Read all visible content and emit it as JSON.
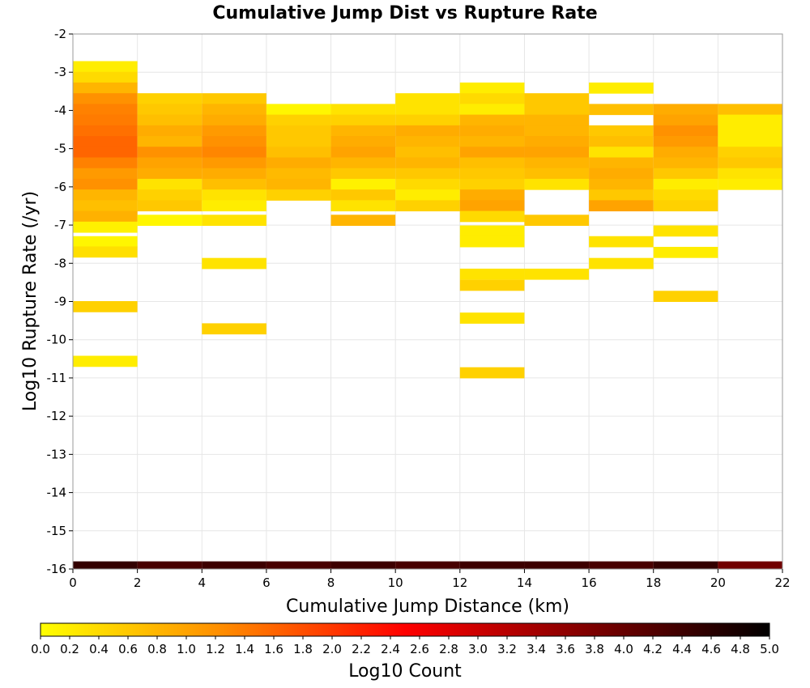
{
  "chart_data": {
    "type": "heatmap",
    "title": "Cumulative Jump Dist vs Rupture Rate",
    "xlabel": "Cumulative Jump Distance (km)",
    "ylabel": "Log10 Rupture Rate (/yr)",
    "xlim": [
      0,
      22
    ],
    "ylim": [
      -16,
      -2
    ],
    "x_ticks": [
      "0",
      "2",
      "4",
      "6",
      "8",
      "10",
      "12",
      "14",
      "16",
      "18",
      "20",
      "22"
    ],
    "y_ticks": [
      "-2",
      "-3",
      "-4",
      "-5",
      "-6",
      "-7",
      "-8",
      "-9",
      "-10",
      "-11",
      "-12",
      "-13",
      "-14",
      "-15",
      "-16"
    ],
    "grid": true,
    "x_bin_width": 2,
    "y_bin_height": 0.28,
    "colorbar": {
      "label": "Log10 Count",
      "range": [
        0,
        5
      ],
      "ticks": [
        "0.0",
        "0.2",
        "0.4",
        "0.6",
        "0.8",
        "1.0",
        "1.2",
        "1.4",
        "1.6",
        "1.8",
        "2.0",
        "2.2",
        "2.4",
        "2.6",
        "2.8",
        "3.0",
        "3.2",
        "3.4",
        "3.6",
        "3.8",
        "4.0",
        "4.2",
        "4.4",
        "4.6",
        "4.8",
        "5.0"
      ],
      "colors": [
        "#ffff00",
        "#ff8c00",
        "#ff0000",
        "#800000",
        "#000000"
      ],
      "placement": "bottom"
    },
    "columns": [
      {
        "x": 1,
        "cells": [
          [
            -2.85,
            0.2
          ],
          [
            -3.13,
            0.4
          ],
          [
            -3.41,
            0.8
          ],
          [
            -3.69,
            1.2
          ],
          [
            -3.97,
            1.35
          ],
          [
            -4.25,
            1.4
          ],
          [
            -4.53,
            1.5
          ],
          [
            -4.81,
            1.6
          ],
          [
            -5.09,
            1.6
          ],
          [
            -5.37,
            1.35
          ],
          [
            -5.65,
            1.1
          ],
          [
            -5.93,
            1.2
          ],
          [
            -6.21,
            0.8
          ],
          [
            -6.49,
            0.7
          ],
          [
            -6.77,
            0.85
          ],
          [
            -7.05,
            0.15
          ],
          [
            -7.43,
            0.1
          ],
          [
            -7.7,
            0.35
          ],
          [
            -9.13,
            0.5
          ],
          [
            -10.56,
            0.2
          ]
        ]
      },
      {
        "x": 3,
        "cells": [
          [
            -3.69,
            0.5
          ],
          [
            -3.97,
            0.6
          ],
          [
            -4.25,
            0.7
          ],
          [
            -4.53,
            0.9
          ],
          [
            -4.81,
            0.8
          ],
          [
            -5.09,
            1.2
          ],
          [
            -5.37,
            1.0
          ],
          [
            -5.65,
            0.9
          ],
          [
            -5.93,
            0.3
          ],
          [
            -6.21,
            0.5
          ],
          [
            -6.49,
            0.6
          ],
          [
            -6.87,
            0.1
          ]
        ]
      },
      {
        "x": 5,
        "cells": [
          [
            -3.69,
            0.6
          ],
          [
            -3.97,
            0.8
          ],
          [
            -4.25,
            0.9
          ],
          [
            -4.53,
            1.1
          ],
          [
            -4.81,
            1.2
          ],
          [
            -5.09,
            1.3
          ],
          [
            -5.37,
            1.1
          ],
          [
            -5.65,
            0.9
          ],
          [
            -5.93,
            0.7
          ],
          [
            -6.21,
            0.3
          ],
          [
            -6.49,
            0.2
          ],
          [
            -6.87,
            0.3
          ],
          [
            -8.0,
            0.3
          ],
          [
            -9.71,
            0.5
          ]
        ]
      },
      {
        "x": 7,
        "cells": [
          [
            -3.97,
            0.1
          ],
          [
            -4.25,
            0.5
          ],
          [
            -4.53,
            0.6
          ],
          [
            -4.81,
            0.6
          ],
          [
            -5.09,
            0.7
          ],
          [
            -5.37,
            0.9
          ],
          [
            -5.65,
            0.75
          ],
          [
            -5.93,
            0.8
          ],
          [
            -6.21,
            0.5
          ]
        ]
      },
      {
        "x": 9,
        "cells": [
          [
            -3.97,
            0.3
          ],
          [
            -4.25,
            0.5
          ],
          [
            -4.53,
            0.8
          ],
          [
            -4.81,
            0.9
          ],
          [
            -5.09,
            1.0
          ],
          [
            -5.37,
            0.8
          ],
          [
            -5.65,
            0.6
          ],
          [
            -5.93,
            0.15
          ],
          [
            -6.21,
            0.6
          ],
          [
            -6.49,
            0.3
          ],
          [
            -6.87,
            0.8
          ]
        ]
      },
      {
        "x": 11,
        "cells": [
          [
            -3.69,
            0.3
          ],
          [
            -3.97,
            0.3
          ],
          [
            -4.25,
            0.5
          ],
          [
            -4.53,
            0.9
          ],
          [
            -4.81,
            0.8
          ],
          [
            -5.09,
            0.7
          ],
          [
            -5.37,
            0.8
          ],
          [
            -5.65,
            0.6
          ],
          [
            -5.93,
            0.4
          ],
          [
            -6.21,
            0.2
          ],
          [
            -6.49,
            0.5
          ]
        ]
      },
      {
        "x": 13,
        "cells": [
          [
            -3.41,
            0.2
          ],
          [
            -3.69,
            0.4
          ],
          [
            -3.97,
            0.2
          ],
          [
            -4.25,
            0.8
          ],
          [
            -4.53,
            0.9
          ],
          [
            -4.81,
            0.8
          ],
          [
            -5.09,
            1.0
          ],
          [
            -5.37,
            0.7
          ],
          [
            -5.65,
            0.6
          ],
          [
            -5.93,
            0.5
          ],
          [
            -6.21,
            0.9
          ],
          [
            -6.49,
            1.0
          ],
          [
            -6.77,
            0.4
          ],
          [
            -7.15,
            0.2
          ],
          [
            -7.43,
            0.2
          ],
          [
            -8.28,
            0.3
          ],
          [
            -8.57,
            0.5
          ],
          [
            -9.43,
            0.3
          ],
          [
            -10.86,
            0.5
          ]
        ]
      },
      {
        "x": 15,
        "cells": [
          [
            -3.69,
            0.6
          ],
          [
            -3.97,
            0.6
          ],
          [
            -4.25,
            0.8
          ],
          [
            -4.53,
            0.8
          ],
          [
            -4.81,
            0.9
          ],
          [
            -5.09,
            1.0
          ],
          [
            -5.37,
            0.8
          ],
          [
            -5.65,
            0.7
          ],
          [
            -5.93,
            0.3
          ],
          [
            -6.87,
            0.6
          ],
          [
            -8.28,
            0.3
          ]
        ]
      },
      {
        "x": 17,
        "cells": [
          [
            -3.41,
            0.2
          ],
          [
            -3.97,
            0.7
          ],
          [
            -4.53,
            0.6
          ],
          [
            -4.81,
            0.7
          ],
          [
            -5.09,
            0.3
          ],
          [
            -5.37,
            0.8
          ],
          [
            -5.65,
            0.9
          ],
          [
            -5.93,
            0.8
          ],
          [
            -6.21,
            0.6
          ],
          [
            -6.49,
            1.0
          ],
          [
            -7.43,
            0.3
          ],
          [
            -8.0,
            0.3
          ]
        ]
      },
      {
        "x": 19,
        "cells": [
          [
            -3.97,
            0.9
          ],
          [
            -4.25,
            1.0
          ],
          [
            -4.53,
            1.2
          ],
          [
            -4.81,
            1.1
          ],
          [
            -5.09,
            0.9
          ],
          [
            -5.37,
            0.8
          ],
          [
            -5.65,
            0.6
          ],
          [
            -5.93,
            0.2
          ],
          [
            -6.21,
            0.4
          ],
          [
            -6.49,
            0.5
          ],
          [
            -7.15,
            0.3
          ],
          [
            -7.71,
            0.2
          ],
          [
            -8.86,
            0.5
          ]
        ]
      },
      {
        "x": 21,
        "cells": [
          [
            -3.97,
            0.7
          ],
          [
            -4.25,
            0.2
          ],
          [
            -4.53,
            0.2
          ],
          [
            -4.81,
            0.2
          ],
          [
            -5.09,
            0.5
          ],
          [
            -5.37,
            0.6
          ],
          [
            -5.65,
            0.3
          ],
          [
            -5.93,
            0.2
          ]
        ]
      }
    ],
    "floor_row": {
      "y": -15.9,
      "values": [
        4.5,
        4.3,
        4.4,
        4.3,
        4.4,
        4.3,
        4.4,
        4.4,
        4.3,
        4.5,
        3.9
      ]
    }
  }
}
